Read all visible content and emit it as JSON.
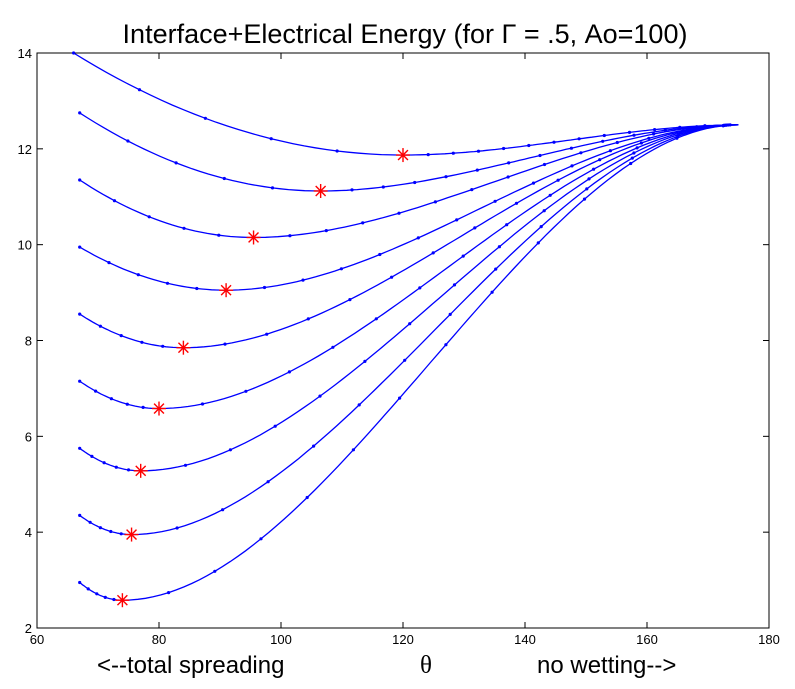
{
  "chart_data": {
    "type": "line",
    "title": "Interface+Electrical Energy (for Γ = .5, Ao=100)",
    "xlabel_left": "<--total spreading",
    "xlabel_symbol": "θ",
    "xlabel_right": "no wetting-->",
    "xlim": [
      60,
      180
    ],
    "ylim": [
      2,
      14
    ],
    "xticks": [
      60,
      80,
      100,
      120,
      140,
      160,
      180
    ],
    "yticks": [
      2,
      4,
      6,
      8,
      10,
      12,
      14
    ],
    "grid": false,
    "line_color": "#0000ff",
    "marker_color": "#ff0000",
    "curves": [
      {
        "start": [
          66,
          14.0
        ],
        "min": [
          120,
          11.87
        ],
        "end": [
          175,
          12.5
        ]
      },
      {
        "start": [
          67,
          12.75
        ],
        "min": [
          106.5,
          11.12
        ],
        "end": [
          175,
          12.5
        ]
      },
      {
        "start": [
          67,
          11.35
        ],
        "min": [
          95.5,
          10.15
        ],
        "end": [
          175,
          12.5
        ]
      },
      {
        "start": [
          67,
          9.95
        ],
        "min": [
          91,
          9.05
        ],
        "end": [
          175,
          12.5
        ]
      },
      {
        "start": [
          67,
          8.55
        ],
        "min": [
          84,
          7.85
        ],
        "end": [
          175,
          12.5
        ]
      },
      {
        "start": [
          67,
          7.15
        ],
        "min": [
          80,
          6.58
        ],
        "end": [
          175,
          12.5
        ]
      },
      {
        "start": [
          67,
          5.75
        ],
        "min": [
          77,
          5.28
        ],
        "end": [
          175,
          12.5
        ]
      },
      {
        "start": [
          67,
          4.35
        ],
        "min": [
          75.5,
          3.95
        ],
        "end": [
          175,
          12.5
        ]
      },
      {
        "start": [
          67,
          2.95
        ],
        "min": [
          74,
          2.58
        ],
        "end": [
          175,
          12.5
        ]
      }
    ]
  }
}
